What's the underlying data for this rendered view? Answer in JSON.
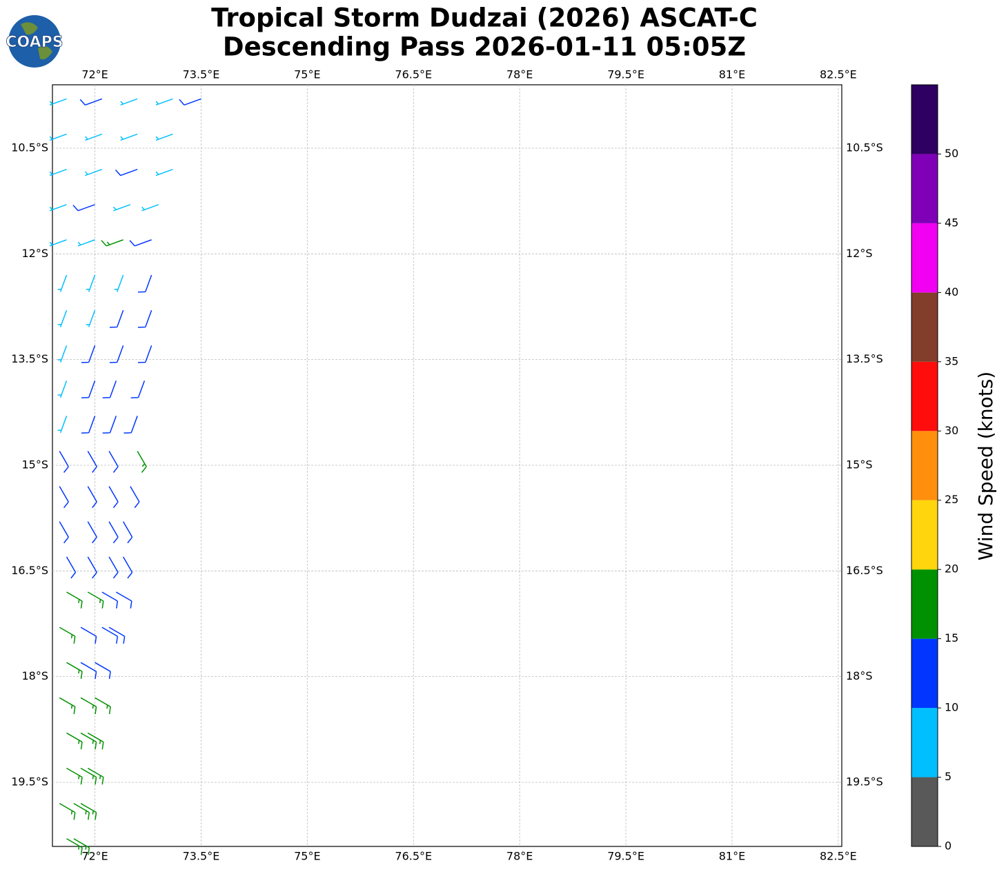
{
  "logo_text": "COAPS",
  "chart_data": {
    "type": "barbs",
    "title": [
      "Tropical Storm Dudzai (2026) ASCAT-C",
      "Descending Pass 2026-01-11 05:05Z"
    ],
    "xlim": [
      71.4,
      82.55
    ],
    "ylim": [
      -20.41,
      -9.6
    ],
    "xticks": [
      {
        "value": 72,
        "label": "72°E"
      },
      {
        "value": 73.5,
        "label": "73.5°E"
      },
      {
        "value": 75,
        "label": "75°E"
      },
      {
        "value": 76.5,
        "label": "76.5°E"
      },
      {
        "value": 78,
        "label": "78°E"
      },
      {
        "value": 79.5,
        "label": "79.5°E"
      },
      {
        "value": 81,
        "label": "81°E"
      },
      {
        "value": 82.5,
        "label": "82.5°E"
      }
    ],
    "yticks": [
      {
        "value": -10.5,
        "label": "10.5°S"
      },
      {
        "value": -12,
        "label": "12°S"
      },
      {
        "value": -13.5,
        "label": "13.5°S"
      },
      {
        "value": -15,
        "label": "15°S"
      },
      {
        "value": -16.5,
        "label": "16.5°S"
      },
      {
        "value": -18,
        "label": "18°S"
      },
      {
        "value": -19.5,
        "label": "19.5°S"
      }
    ],
    "grid": true,
    "x": [
      71.6,
      72.1,
      72.6,
      73.1,
      73.5,
      71.6,
      72.1,
      72.6,
      73.1,
      71.6,
      72.1,
      72.6,
      73.1,
      71.6,
      72.0,
      72.5,
      72.9,
      71.6,
      72.0,
      72.4,
      72.8,
      71.6,
      72.0,
      72.4,
      72.8,
      71.6,
      72.0,
      72.4,
      72.8,
      71.6,
      72.0,
      72.4,
      72.8,
      71.6,
      72.0,
      72.3,
      72.7,
      71.6,
      72.0,
      72.3,
      72.6,
      71.5,
      71.9,
      72.2,
      72.6,
      71.5,
      71.9,
      72.2,
      72.5,
      71.5,
      71.9,
      72.2,
      72.4,
      71.6,
      71.9,
      72.2,
      72.4,
      71.6,
      71.9,
      72.1,
      72.3,
      71.5,
      71.8,
      72.1,
      72.2,
      71.6,
      71.8,
      72.0,
      71.5,
      71.8,
      72.0,
      71.6,
      71.8,
      71.9,
      71.6,
      71.8,
      71.9,
      71.5,
      71.7,
      71.8,
      71.6,
      71.7
    ],
    "y": [
      -9.8,
      -9.8,
      -9.8,
      -9.8,
      -9.8,
      -10.3,
      -10.3,
      -10.3,
      -10.3,
      -10.8,
      -10.8,
      -10.8,
      -10.8,
      -11.3,
      -11.3,
      -11.3,
      -11.3,
      -11.8,
      -11.8,
      -11.8,
      -11.8,
      -12.3,
      -12.3,
      -12.3,
      -12.3,
      -12.8,
      -12.8,
      -12.8,
      -12.8,
      -13.3,
      -13.3,
      -13.3,
      -13.3,
      -13.8,
      -13.8,
      -13.8,
      -13.8,
      -14.3,
      -14.3,
      -14.3,
      -14.3,
      -14.8,
      -14.8,
      -14.8,
      -14.8,
      -15.3,
      -15.3,
      -15.3,
      -15.3,
      -15.8,
      -15.8,
      -15.8,
      -15.8,
      -16.3,
      -16.3,
      -16.3,
      -16.3,
      -16.8,
      -16.8,
      -16.8,
      -16.8,
      -17.3,
      -17.3,
      -17.3,
      -17.3,
      -17.8,
      -17.8,
      -17.8,
      -18.3,
      -18.3,
      -18.3,
      -18.8,
      -18.8,
      -18.8,
      -19.3,
      -19.3,
      -19.3,
      -19.8,
      -19.8,
      -19.8,
      -20.3,
      -20.3
    ],
    "values": [
      7,
      12,
      8,
      7,
      12,
      8,
      8,
      9,
      8,
      8,
      7,
      12,
      8,
      8,
      12,
      8,
      7,
      8,
      8,
      17,
      12,
      8,
      8,
      8,
      12,
      8,
      8,
      12,
      12,
      8,
      12,
      12,
      12,
      8,
      12,
      12,
      12,
      8,
      12,
      12,
      12,
      12,
      12,
      12,
      17,
      12,
      12,
      12,
      12,
      12,
      12,
      12,
      12,
      12,
      12,
      12,
      12,
      17,
      17,
      12,
      12,
      17,
      12,
      12,
      12,
      17,
      12,
      12,
      17,
      17,
      17,
      17,
      17,
      17,
      17,
      17,
      17,
      17,
      17,
      17,
      17,
      17
    ],
    "directions": [
      250,
      250,
      250,
      250,
      250,
      250,
      250,
      250,
      250,
      250,
      250,
      250,
      250,
      250,
      250,
      250,
      250,
      250,
      250,
      250,
      250,
      200,
      200,
      200,
      200,
      200,
      200,
      200,
      200,
      200,
      200,
      200,
      200,
      200,
      200,
      200,
      200,
      200,
      200,
      200,
      200,
      150,
      150,
      150,
      150,
      150,
      150,
      150,
      150,
      150,
      150,
      150,
      150,
      150,
      150,
      150,
      150,
      120,
      120,
      120,
      120,
      120,
      120,
      120,
      120,
      120,
      120,
      120,
      120,
      120,
      120,
      120,
      120,
      120,
      120,
      120,
      120,
      120,
      120,
      120,
      120,
      120
    ],
    "colorbar": {
      "label": "Wind Speed (knots)",
      "bins": [
        0,
        5,
        10,
        15,
        20,
        25,
        30,
        35,
        40,
        45,
        50,
        55
      ],
      "colors": [
        "#595959",
        "#00bfff",
        "#0036ff",
        "#009100",
        "#ffd60d",
        "#ff8f0d",
        "#ff0d0d",
        "#823d2b",
        "#f200f2",
        "#8000b8",
        "#2d0061"
      ],
      "ticks": [
        0,
        5,
        10,
        15,
        20,
        25,
        30,
        35,
        40,
        45,
        50
      ]
    }
  }
}
